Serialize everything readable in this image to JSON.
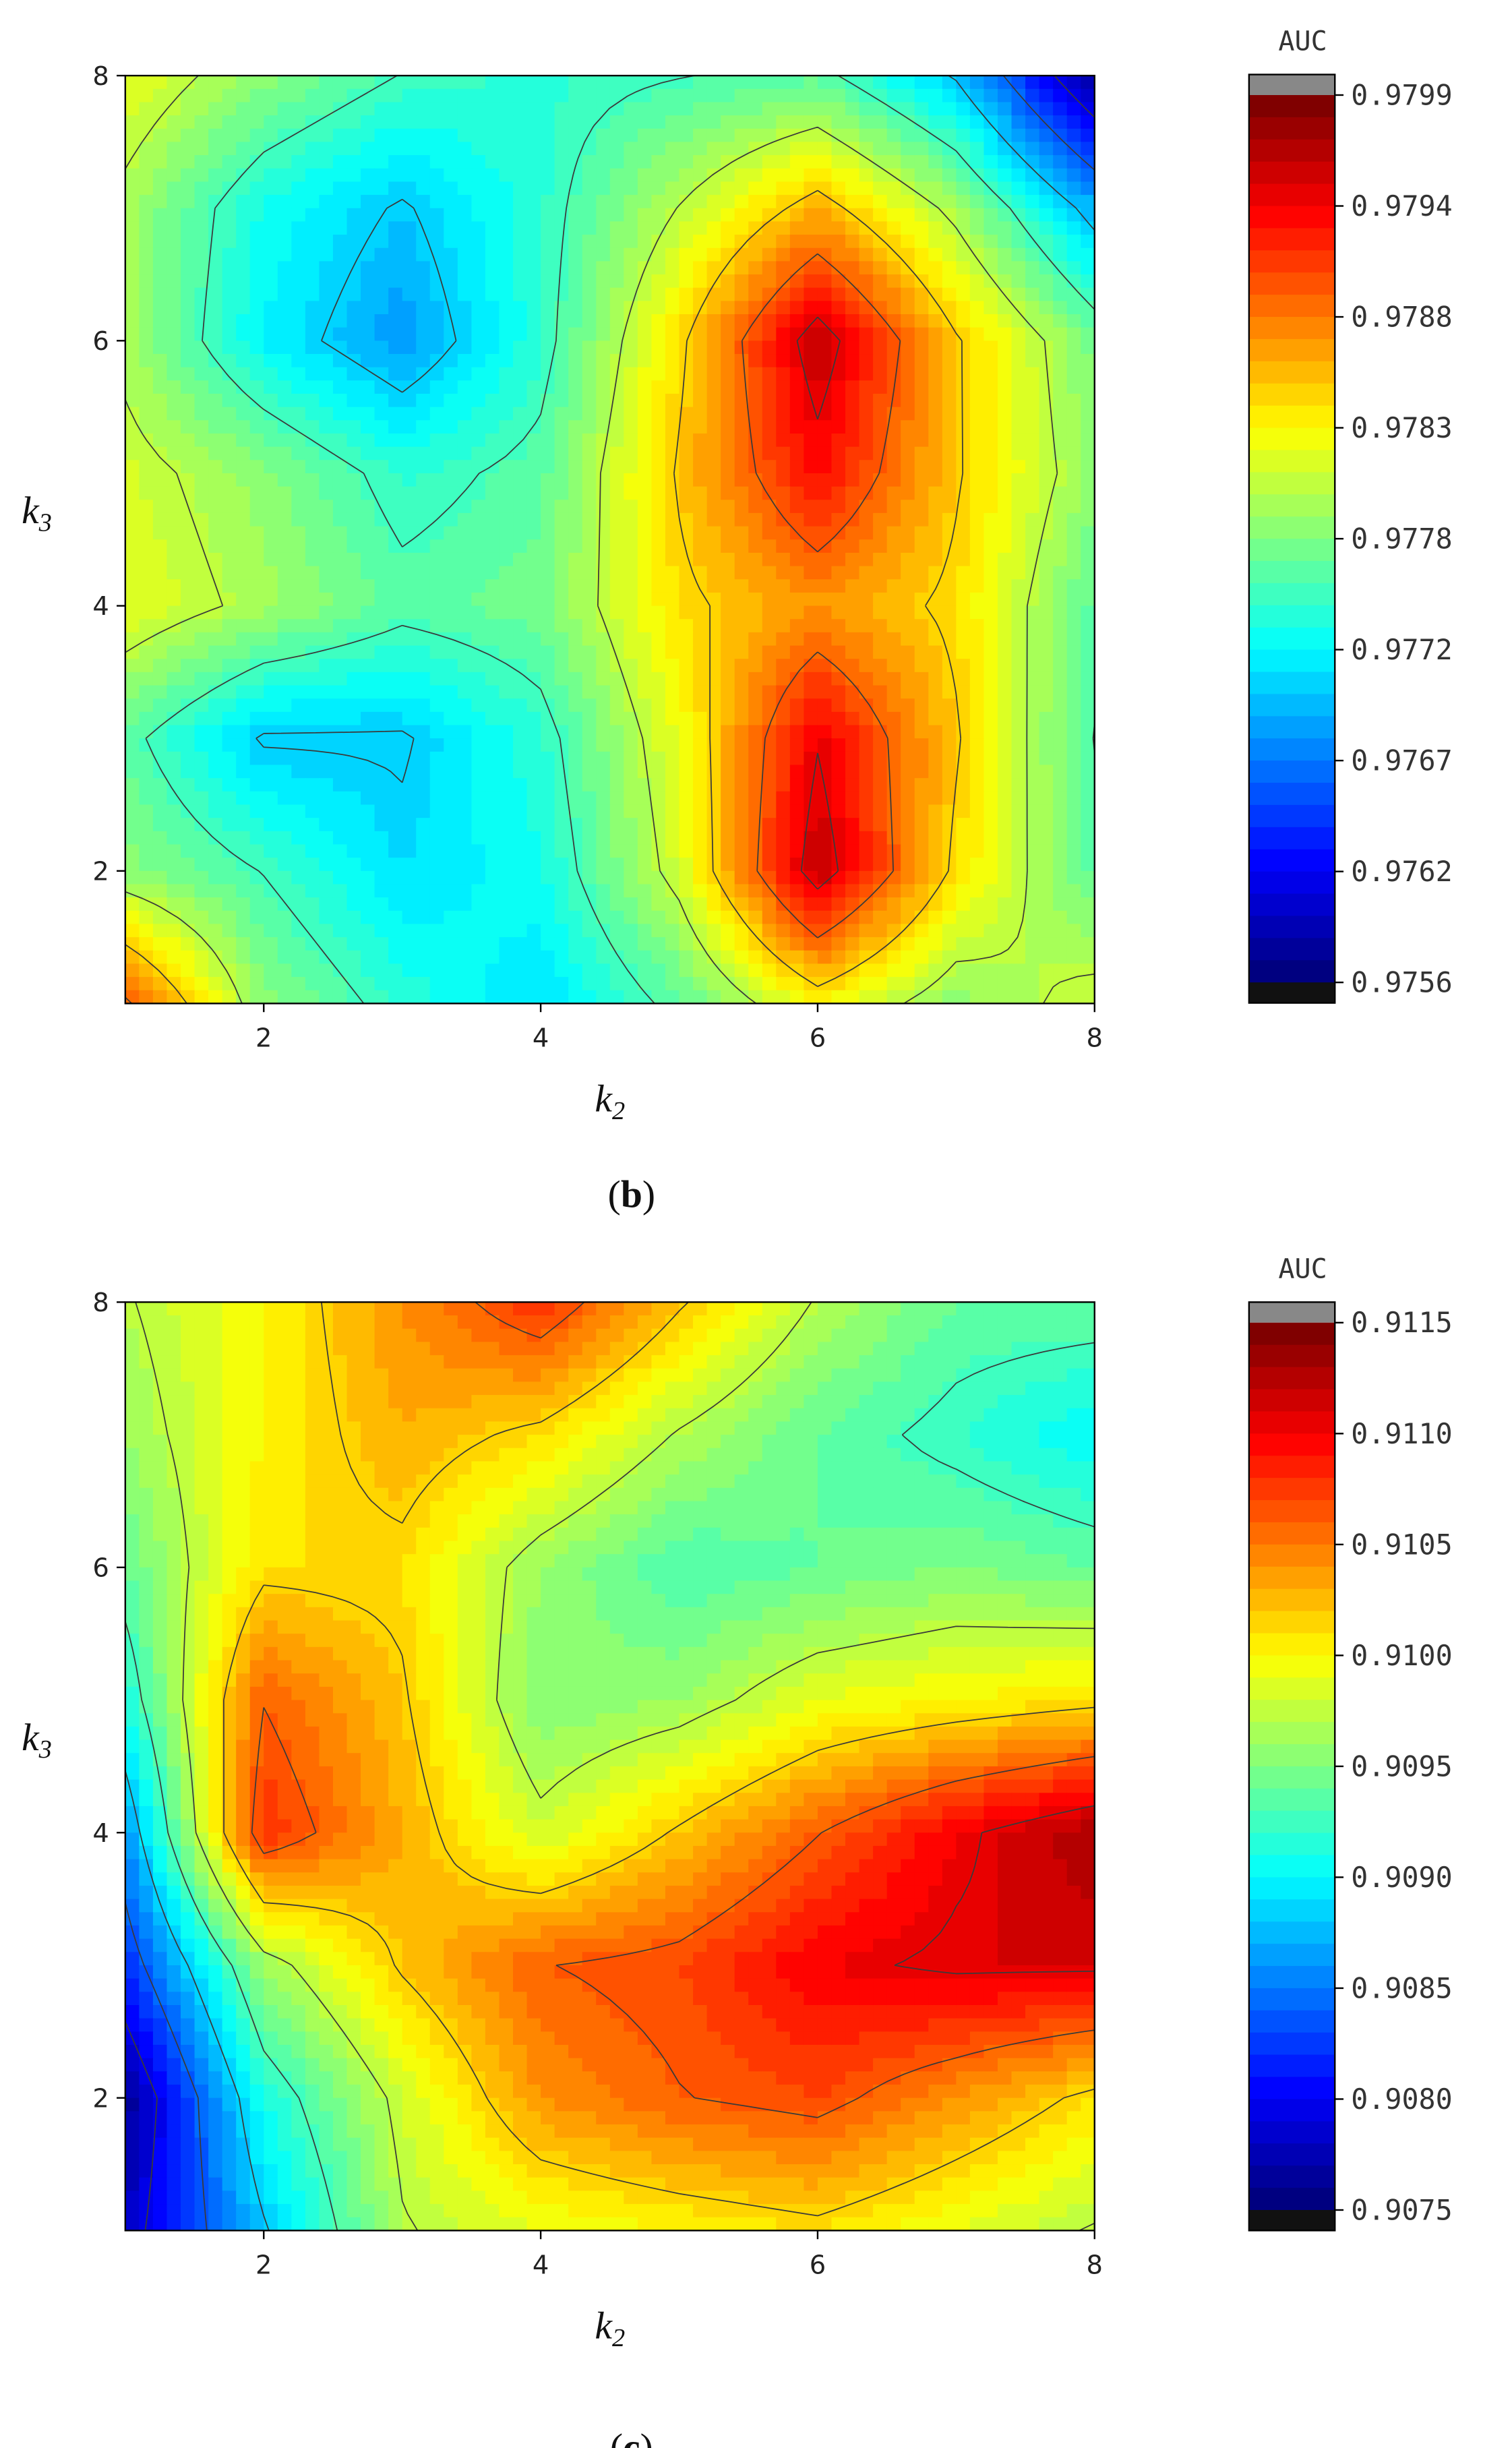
{
  "chart_data": [
    {
      "type": "heatmap",
      "panel_label": "b",
      "colorbar_title": "AUC",
      "xlabel": "k",
      "xlabel_sub": "2",
      "ylabel": "k",
      "ylabel_sub": "3",
      "xlim": [
        1,
        8
      ],
      "ylim": [
        1,
        8
      ],
      "xticks": [
        2,
        4,
        6,
        8
      ],
      "yticks": [
        2,
        4,
        6,
        8
      ],
      "zlim": [
        0.9756,
        0.9799
      ],
      "colorbar_ticks": [
        "0.9799",
        "0.9794",
        "0.9788",
        "0.9783",
        "0.9778",
        "0.9772",
        "0.9767",
        "0.9762",
        "0.9756"
      ],
      "grid": false,
      "x": [
        1,
        2,
        3,
        4,
        5,
        6,
        7,
        8
      ],
      "y": [
        1,
        2,
        3,
        4,
        5,
        6,
        7,
        8
      ],
      "z": [
        [
          0.979,
          0.9778,
          0.9774,
          0.9771,
          0.9776,
          0.9783,
          0.9778,
          0.9781
        ],
        [
          0.9778,
          0.9775,
          0.9771,
          0.9773,
          0.9781,
          0.9796,
          0.9784,
          0.9776
        ],
        [
          0.9776,
          0.977,
          0.977,
          0.9774,
          0.9782,
          0.9794,
          0.9785,
          0.9775
        ],
        [
          0.9782,
          0.9779,
          0.9776,
          0.9777,
          0.9784,
          0.9787,
          0.9784,
          0.9776
        ],
        [
          0.9781,
          0.9778,
          0.9774,
          0.9776,
          0.9785,
          0.9793,
          0.9785,
          0.9778
        ],
        [
          0.9779,
          0.9772,
          0.9768,
          0.9774,
          0.9784,
          0.9796,
          0.9785,
          0.9777
        ],
        [
          0.9779,
          0.9773,
          0.977,
          0.9774,
          0.978,
          0.9786,
          0.9779,
          0.9769
        ],
        [
          0.9782,
          0.9778,
          0.9775,
          0.9774,
          0.9775,
          0.9776,
          0.977,
          0.9757
        ]
      ]
    },
    {
      "type": "heatmap",
      "panel_label": "c",
      "colorbar_title": "AUC",
      "xlabel": "k",
      "xlabel_sub": "2",
      "ylabel": "k",
      "ylabel_sub": "3",
      "xlim": [
        1,
        8
      ],
      "ylim": [
        1,
        8
      ],
      "xticks": [
        2,
        4,
        6,
        8
      ],
      "yticks": [
        2,
        4,
        6,
        8
      ],
      "zlim": [
        0.9075,
        0.9115
      ],
      "colorbar_ticks": [
        "0.9115",
        "0.9110",
        "0.9105",
        "0.9100",
        "0.9095",
        "0.9090",
        "0.9085",
        "0.9080",
        "0.9075"
      ],
      "grid": false,
      "x": [
        1,
        2,
        3,
        4,
        5,
        6,
        7,
        8
      ],
      "y": [
        1,
        2,
        3,
        4,
        5,
        6,
        7,
        8
      ],
      "z": [
        [
          0.9078,
          0.9088,
          0.9097,
          0.9099,
          0.91,
          0.9101,
          0.9099,
          0.9097
        ],
        [
          0.9076,
          0.9091,
          0.9098,
          0.9104,
          0.9106,
          0.9107,
          0.9104,
          0.9101
        ],
        [
          0.9082,
          0.9096,
          0.9102,
          0.9106,
          0.9107,
          0.911,
          0.9111,
          0.9111
        ],
        [
          0.9086,
          0.9108,
          0.9103,
          0.9098,
          0.9102,
          0.9106,
          0.911,
          0.9113
        ],
        [
          0.9091,
          0.9106,
          0.9102,
          0.9095,
          0.9096,
          0.9099,
          0.91,
          0.9101
        ],
        [
          0.9094,
          0.9101,
          0.9101,
          0.9096,
          0.9093,
          0.9094,
          0.9095,
          0.9094
        ],
        [
          0.9096,
          0.91,
          0.9103,
          0.9101,
          0.9097,
          0.9094,
          0.9092,
          0.909
        ],
        [
          0.9097,
          0.91,
          0.9104,
          0.9108,
          0.9102,
          0.9097,
          0.9094,
          0.9094
        ]
      ]
    }
  ]
}
